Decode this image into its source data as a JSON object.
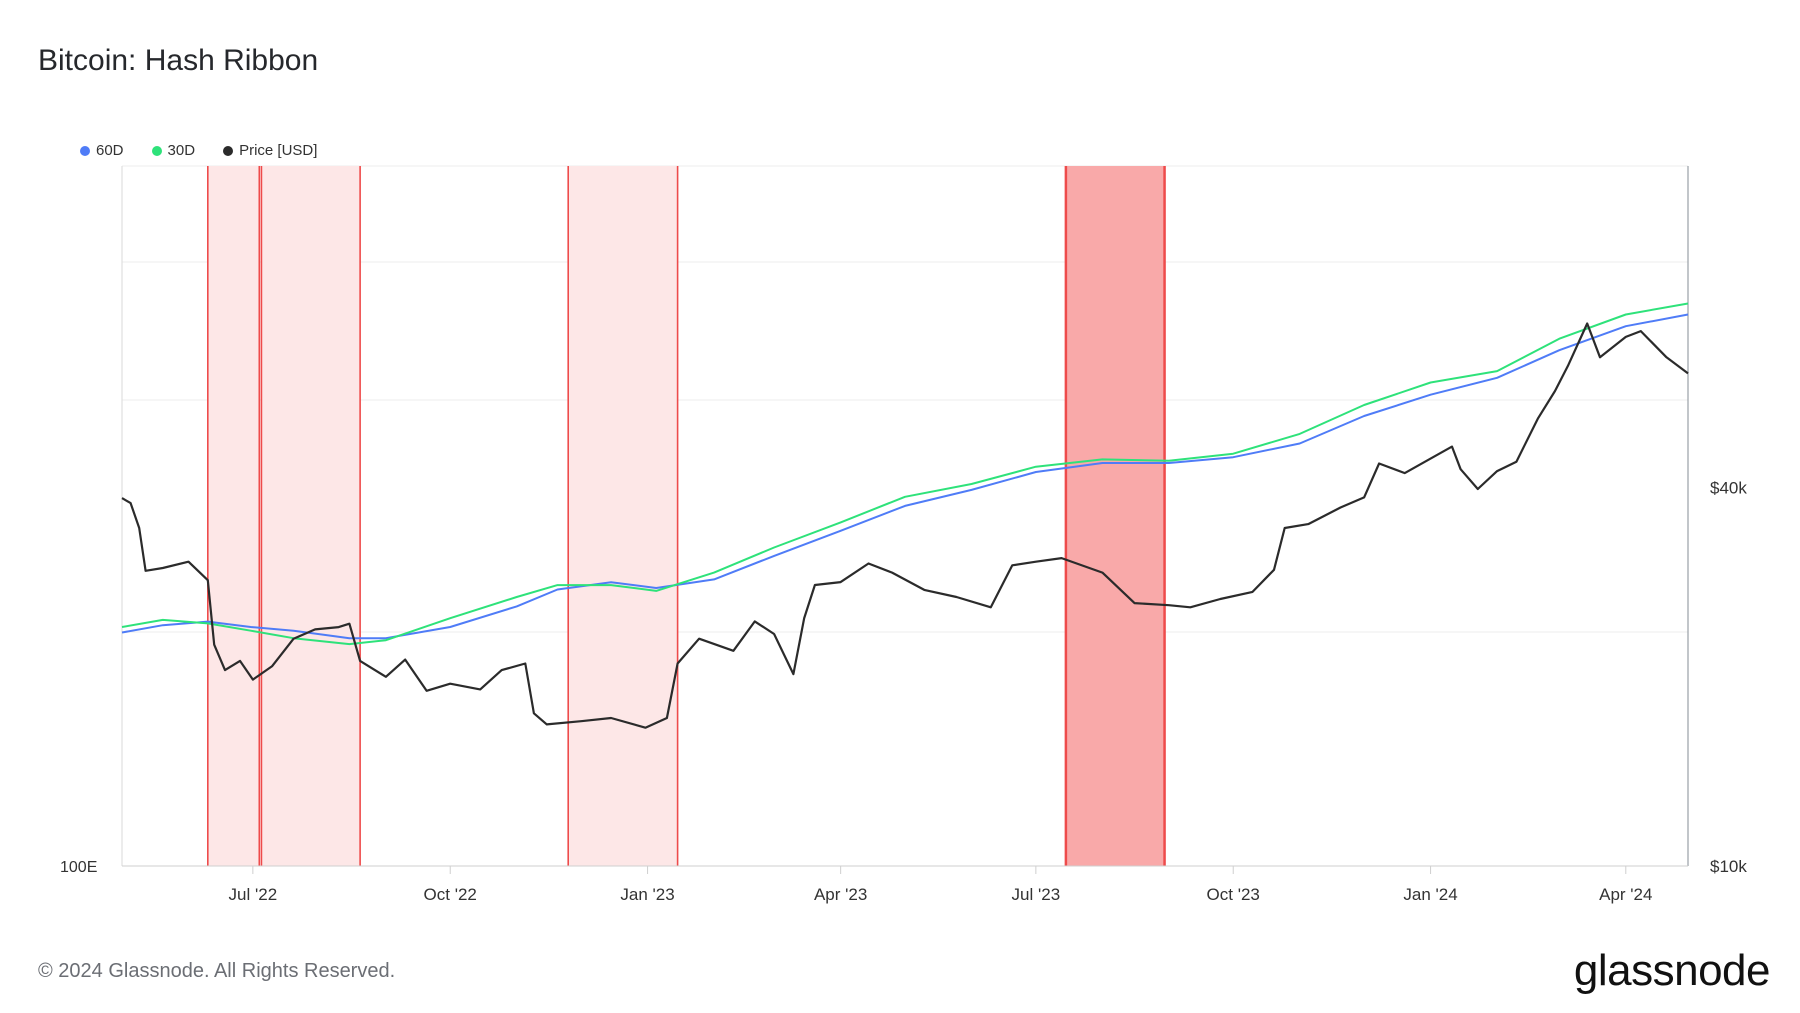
{
  "title": "Bitcoin: Hash Ribbon",
  "footer": "© 2024 Glassnode. All Rights Reserved.",
  "brand": "glassnode",
  "legend": [
    {
      "label": "60D",
      "color": "#4f7cf7"
    },
    {
      "label": "30D",
      "color": "#2ee27a"
    },
    {
      "label": "Price [USD]",
      "color": "#2b2b2b"
    }
  ],
  "chart_data": {
    "type": "line",
    "title": "Bitcoin: Hash Ribbon",
    "x_ticks": [
      "Jul '22",
      "Oct '22",
      "Jan '23",
      "Apr '23",
      "Jul '23",
      "Oct '23",
      "Jan '24",
      "Apr '24"
    ],
    "x_tick_dates": [
      "2022-07-01",
      "2022-10-01",
      "2023-01-01",
      "2023-04-01",
      "2023-07-01",
      "2023-10-01",
      "2024-01-01",
      "2024-04-01"
    ],
    "x_range": [
      "2022-05-01",
      "2024-04-30"
    ],
    "left_axis": {
      "label": "100E",
      "scale": "log"
    },
    "right_axis": {
      "scale": "log",
      "ticks": [
        "$40k",
        "$10k"
      ],
      "tick_values": [
        40000,
        10000
      ],
      "range": [
        10000,
        130000
      ]
    },
    "grid": true,
    "legend_position": "top-left",
    "capitulation_bands": [
      {
        "start": "2022-06-10",
        "end": "2022-07-04",
        "intensity": "light"
      },
      {
        "start": "2022-07-05",
        "end": "2022-08-20",
        "intensity": "light"
      },
      {
        "start": "2022-11-25",
        "end": "2023-01-15",
        "intensity": "light"
      },
      {
        "start": "2023-07-15",
        "end": "2023-08-30",
        "intensity": "strong"
      }
    ],
    "series": [
      {
        "name": "Price [USD]",
        "color": "#2b2b2b",
        "axis": "right",
        "x": [
          "2022-05-01",
          "2022-05-05",
          "2022-05-09",
          "2022-05-12",
          "2022-05-20",
          "2022-06-01",
          "2022-06-10",
          "2022-06-13",
          "2022-06-18",
          "2022-06-25",
          "2022-07-01",
          "2022-07-10",
          "2022-07-20",
          "2022-07-30",
          "2022-08-10",
          "2022-08-15",
          "2022-08-20",
          "2022-09-01",
          "2022-09-10",
          "2022-09-20",
          "2022-10-01",
          "2022-10-15",
          "2022-10-25",
          "2022-11-05",
          "2022-11-09",
          "2022-11-15",
          "2022-12-01",
          "2022-12-15",
          "2022-12-31",
          "2023-01-10",
          "2023-01-15",
          "2023-01-25",
          "2023-02-10",
          "2023-02-20",
          "2023-03-01",
          "2023-03-10",
          "2023-03-15",
          "2023-03-20",
          "2023-04-01",
          "2023-04-14",
          "2023-04-25",
          "2023-05-10",
          "2023-05-25",
          "2023-06-10",
          "2023-06-20",
          "2023-07-01",
          "2023-07-13",
          "2023-08-01",
          "2023-08-16",
          "2023-09-01",
          "2023-09-11",
          "2023-09-25",
          "2023-10-10",
          "2023-10-20",
          "2023-10-25",
          "2023-11-05",
          "2023-11-20",
          "2023-12-01",
          "2023-12-08",
          "2023-12-20",
          "2024-01-01",
          "2024-01-11",
          "2024-01-15",
          "2024-01-23",
          "2024-02-01",
          "2024-02-10",
          "2024-02-20",
          "2024-02-28",
          "2024-03-05",
          "2024-03-14",
          "2024-03-20",
          "2024-04-01",
          "2024-04-08",
          "2024-04-20",
          "2024-04-30"
        ],
        "values": [
          38500,
          37800,
          34500,
          29500,
          29800,
          30500,
          28500,
          22500,
          20500,
          21200,
          19800,
          20800,
          23000,
          23800,
          24000,
          24300,
          21200,
          20000,
          21300,
          19000,
          19500,
          19100,
          20500,
          21000,
          17500,
          16800,
          17000,
          17200,
          16600,
          17200,
          21000,
          23000,
          22000,
          24500,
          23400,
          20200,
          24800,
          28000,
          28300,
          30300,
          29300,
          27500,
          26800,
          25800,
          30100,
          30500,
          30900,
          29300,
          26200,
          26000,
          25800,
          26600,
          27300,
          29600,
          34500,
          35000,
          37200,
          38600,
          43700,
          42200,
          44500,
          46500,
          42800,
          39800,
          42500,
          44000,
          51500,
          57000,
          62500,
          73000,
          64500,
          69500,
          71000,
          64500,
          60800
        ]
      },
      {
        "name": "30D",
        "color": "#2ee27a",
        "axis": "left",
        "x": [
          "2022-05-01",
          "2022-05-20",
          "2022-06-10",
          "2022-06-30",
          "2022-07-20",
          "2022-08-15",
          "2022-09-01",
          "2022-10-01",
          "2022-11-01",
          "2022-11-20",
          "2022-12-15",
          "2023-01-05",
          "2023-02-01",
          "2023-03-01",
          "2023-04-01",
          "2023-05-01",
          "2023-06-01",
          "2023-07-01",
          "2023-08-01",
          "2023-09-01",
          "2023-10-01",
          "2023-11-01",
          "2023-12-01",
          "2024-01-01",
          "2024-02-01",
          "2024-03-01",
          "2024-04-01",
          "2024-04-30"
        ],
        "values": [
          1.0,
          1.04,
          1.02,
          0.98,
          0.94,
          0.91,
          0.93,
          1.05,
          1.18,
          1.26,
          1.26,
          1.22,
          1.35,
          1.55,
          1.78,
          2.05,
          2.2,
          2.42,
          2.52,
          2.5,
          2.6,
          2.9,
          3.4,
          3.85,
          4.1,
          4.9,
          5.6,
          5.95
        ]
      },
      {
        "name": "60D",
        "color": "#4f7cf7",
        "axis": "left",
        "x": [
          "2022-05-01",
          "2022-05-20",
          "2022-06-10",
          "2022-06-30",
          "2022-07-20",
          "2022-08-15",
          "2022-09-01",
          "2022-10-01",
          "2022-11-01",
          "2022-11-20",
          "2022-12-15",
          "2023-01-05",
          "2023-02-01",
          "2023-03-01",
          "2023-04-01",
          "2023-05-01",
          "2023-06-01",
          "2023-07-01",
          "2023-08-01",
          "2023-09-01",
          "2023-10-01",
          "2023-11-01",
          "2023-12-01",
          "2024-01-01",
          "2024-02-01",
          "2024-03-01",
          "2024-04-01",
          "2024-04-30"
        ],
        "values": [
          0.97,
          1.01,
          1.03,
          1.0,
          0.98,
          0.94,
          0.94,
          1.0,
          1.12,
          1.23,
          1.28,
          1.24,
          1.3,
          1.48,
          1.7,
          1.95,
          2.13,
          2.35,
          2.47,
          2.47,
          2.55,
          2.75,
          3.2,
          3.6,
          3.95,
          4.6,
          5.25,
          5.6
        ]
      }
    ]
  }
}
